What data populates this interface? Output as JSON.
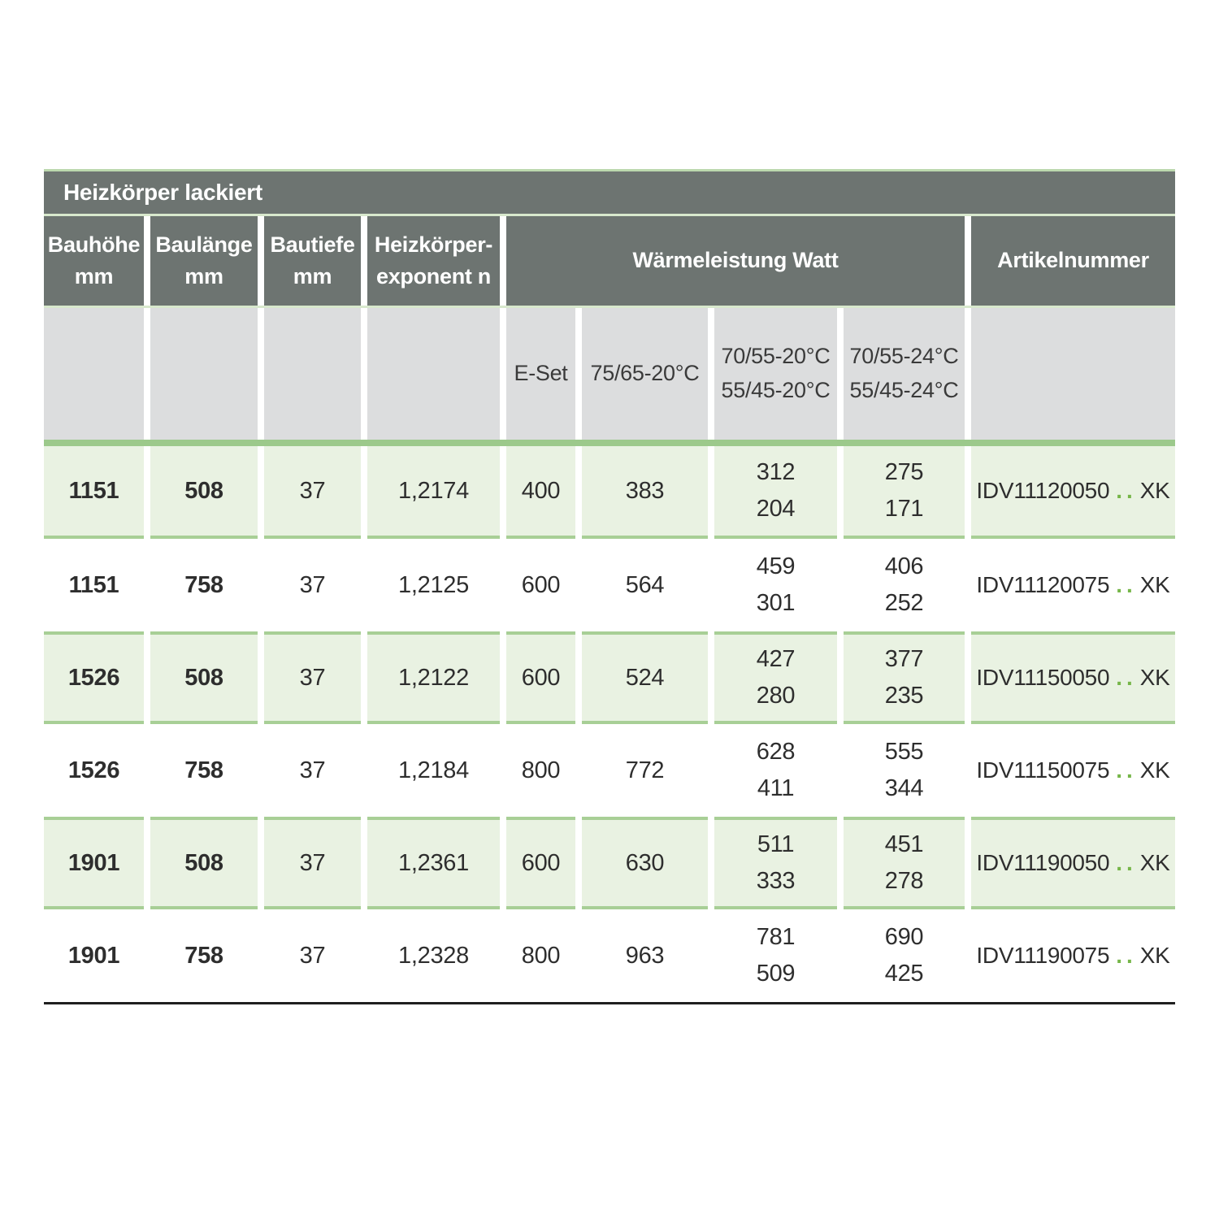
{
  "table": {
    "title": "Heizkörper lackiert",
    "columns": {
      "col1_line1": "Bauhöhe",
      "col1_line2": "mm",
      "col2_line1": "Baulänge",
      "col2_line2": "mm",
      "col3_line1": "Bautiefe",
      "col3_line2": "mm",
      "col4_line1": "Heizkörper-",
      "col4_line2": "exponent n",
      "group_watt": "Wärmeleistung Watt",
      "artikelnummer": "Artikelnummer"
    },
    "subheaders": {
      "e_set": "E-Set",
      "t7565": "75/65-20°C",
      "t7055_20_line1": "70/55-20°C",
      "t7055_20_line2": "55/45-20°C",
      "t7055_24_line1": "70/55-24°C",
      "t7055_24_line2": "55/45-24°C"
    },
    "rows": [
      {
        "bauhoehe": "1151",
        "baulaenge": "508",
        "bautiefe": "37",
        "exponent": "1,2174",
        "e_set": "400",
        "w7565": "383",
        "w7055_20_hi": "312",
        "w7055_20_lo": "204",
        "w7055_24_hi": "275",
        "w7055_24_lo": "171",
        "art_prefix": "IDV11120050",
        "art_dots": "..",
        "art_suffix": "XK"
      },
      {
        "bauhoehe": "1151",
        "baulaenge": "758",
        "bautiefe": "37",
        "exponent": "1,2125",
        "e_set": "600",
        "w7565": "564",
        "w7055_20_hi": "459",
        "w7055_20_lo": "301",
        "w7055_24_hi": "406",
        "w7055_24_lo": "252",
        "art_prefix": "IDV11120075",
        "art_dots": "..",
        "art_suffix": "XK"
      },
      {
        "bauhoehe": "1526",
        "baulaenge": "508",
        "bautiefe": "37",
        "exponent": "1,2122",
        "e_set": "600",
        "w7565": "524",
        "w7055_20_hi": "427",
        "w7055_20_lo": "280",
        "w7055_24_hi": "377",
        "w7055_24_lo": "235",
        "art_prefix": "IDV11150050",
        "art_dots": "..",
        "art_suffix": "XK"
      },
      {
        "bauhoehe": "1526",
        "baulaenge": "758",
        "bautiefe": "37",
        "exponent": "1,2184",
        "e_set": "800",
        "w7565": "772",
        "w7055_20_hi": "628",
        "w7055_20_lo": "411",
        "w7055_24_hi": "555",
        "w7055_24_lo": "344",
        "art_prefix": "IDV11150075",
        "art_dots": "..",
        "art_suffix": "XK"
      },
      {
        "bauhoehe": "1901",
        "baulaenge": "508",
        "bautiefe": "37",
        "exponent": "1,2361",
        "e_set": "600",
        "w7565": "630",
        "w7055_20_hi": "511",
        "w7055_20_lo": "333",
        "w7055_24_hi": "451",
        "w7055_24_lo": "278",
        "art_prefix": "IDV11190050",
        "art_dots": "..",
        "art_suffix": "XK"
      },
      {
        "bauhoehe": "1901",
        "baulaenge": "758",
        "bautiefe": "37",
        "exponent": "1,2328",
        "e_set": "800",
        "w7565": "963",
        "w7055_20_hi": "781",
        "w7055_20_lo": "509",
        "w7055_24_hi": "690",
        "w7055_24_lo": "425",
        "art_prefix": "IDV11190075",
        "art_dots": "..",
        "art_suffix": "XK"
      }
    ]
  },
  "colors": {
    "header_bg": "#6d7471",
    "subheader_bg": "#dcddde",
    "row_green_bg": "#e9f2e2",
    "green_border": "#a8cf96",
    "green_band": "#9cc98b",
    "accent_green": "#76b649",
    "top_line": "#bcd8ae",
    "bottom_line": "#1f1f1f"
  }
}
